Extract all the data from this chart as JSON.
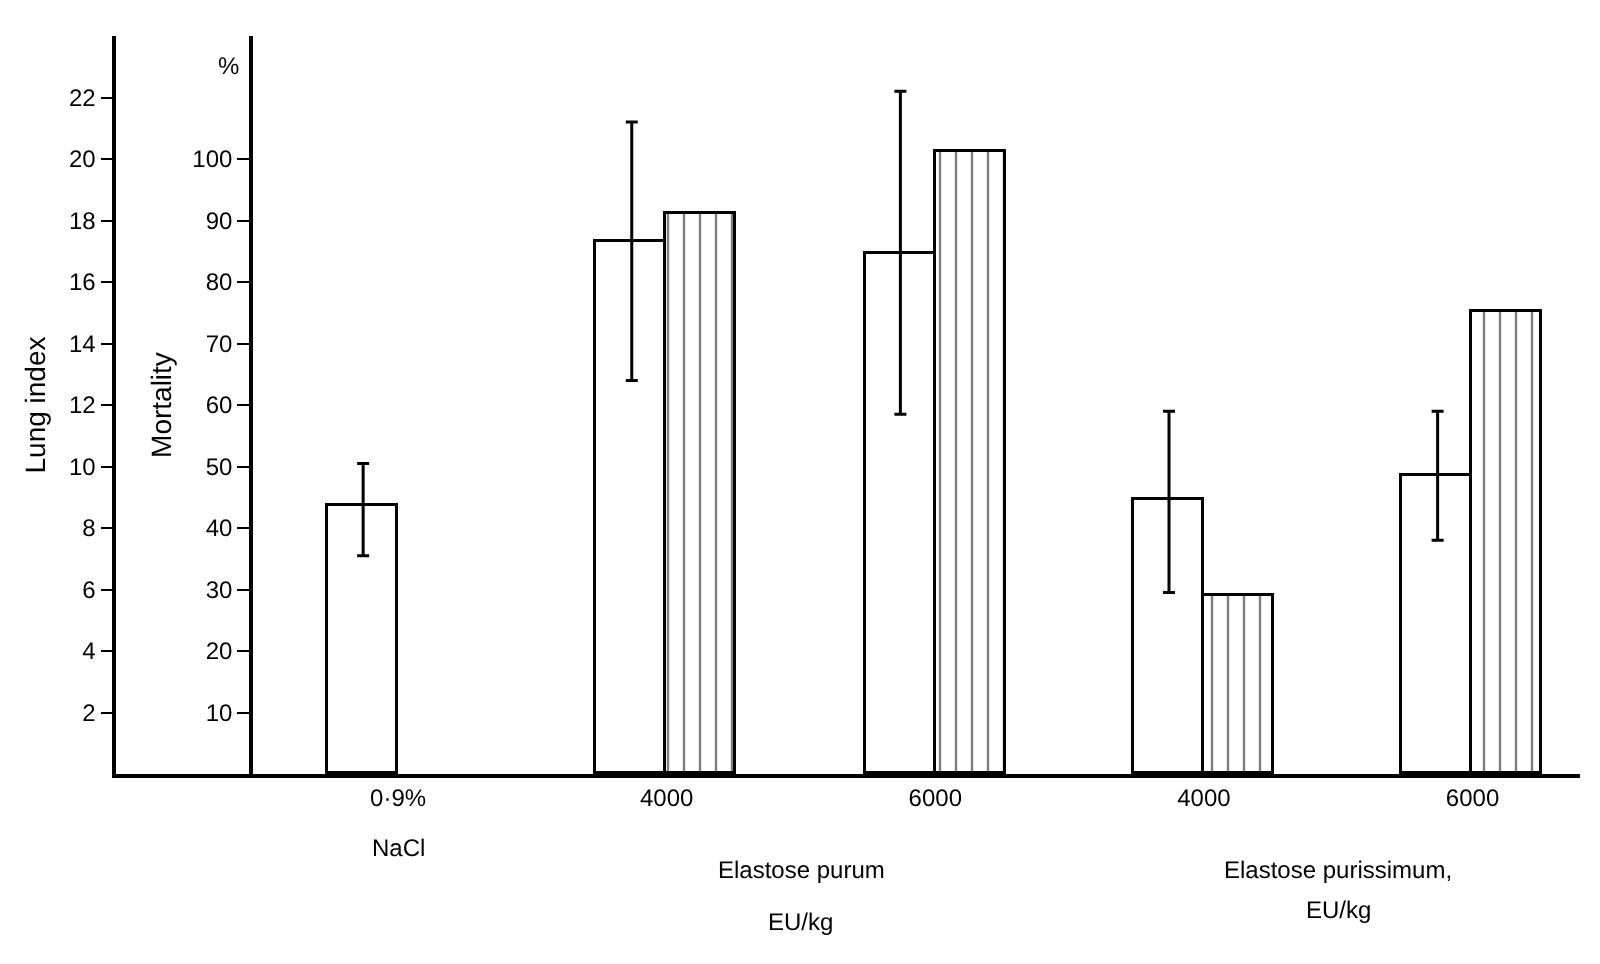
{
  "chart_data": {
    "type": "bar",
    "categories": [
      "0·9%",
      "4000",
      "6000",
      "4000",
      "6000"
    ],
    "series": [
      {
        "color": "#ffffff",
        "values": [
          8.7,
          17.3,
          16.9,
          8.9,
          9.7
        ],
        "errors": [
          [
            7.1,
            10.1
          ],
          [
            12.8,
            21.2
          ],
          [
            11.7,
            22.2
          ],
          [
            5.9,
            11.8
          ],
          [
            7.6,
            11.8
          ]
        ]
      },
      {
        "color": "#000000",
        "axis": "y2",
        "values": [
          null,
          91,
          101,
          29,
          75
        ]
      }
    ],
    "ylabel": "Lung index",
    "y2label": "Mortality",
    "ylim": [
      0,
      24
    ],
    "yticks": [
      2,
      4,
      6,
      8,
      10,
      12,
      14,
      16,
      18,
      20,
      22
    ],
    "y2lim": [
      0,
      120
    ],
    "y2ticks": [
      10,
      20,
      30,
      40,
      50,
      60,
      70,
      80,
      90,
      100
    ],
    "annotations": [
      "%",
      "NaCl",
      "Elastose purum",
      "EU/kg",
      "Elastose purissimum,",
      "EU/kg"
    ],
    "relative": false
  }
}
